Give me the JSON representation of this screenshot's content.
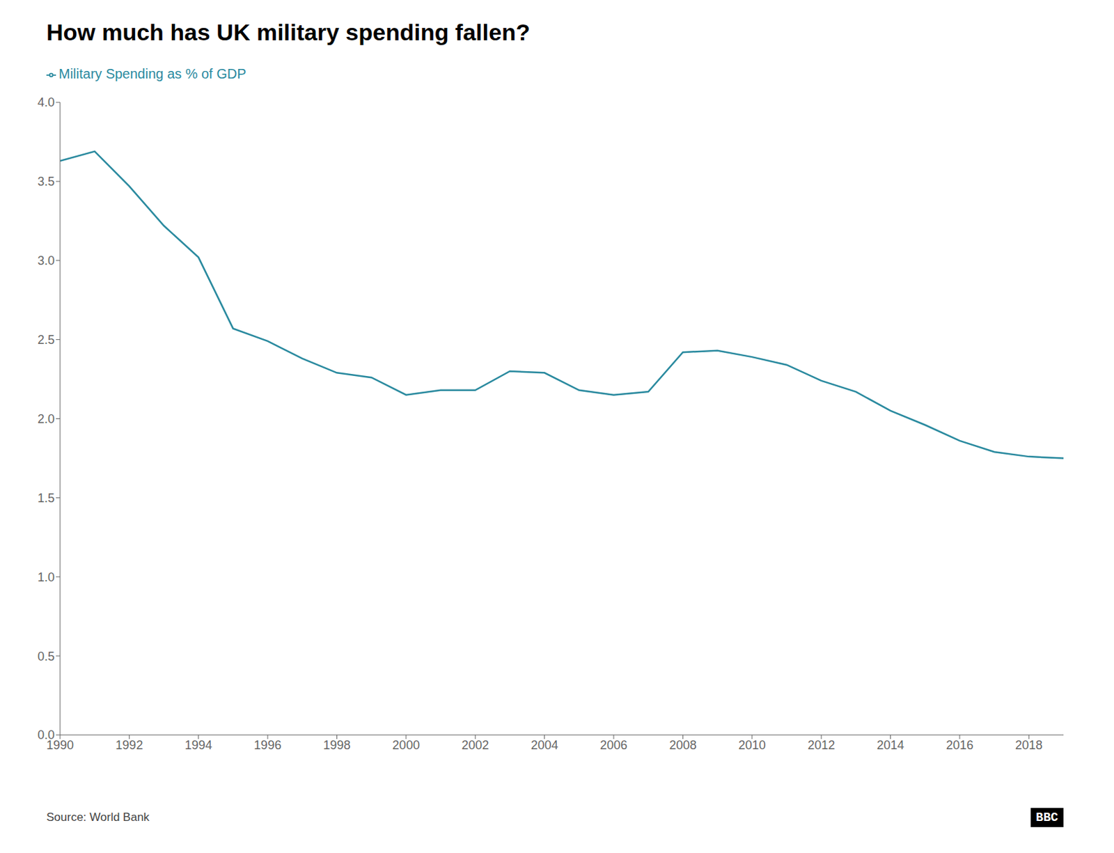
{
  "chart_data": {
    "type": "line",
    "title": "How much has UK military spending fallen?",
    "annotations": [
      "Source: World Bank",
      "BBC"
    ],
    "x": [
      1990,
      1991,
      1992,
      1993,
      1994,
      1995,
      1996,
      1997,
      1998,
      1999,
      2000,
      2001,
      2002,
      2003,
      2004,
      2005,
      2006,
      2007,
      2008,
      2009,
      2010,
      2011,
      2012,
      2013,
      2014,
      2015,
      2016,
      2017,
      2018,
      2019
    ],
    "series": [
      {
        "name": "Military Spending as % of GDP",
        "color": "#2a8a9f",
        "values": [
          3.63,
          3.69,
          3.47,
          3.22,
          3.02,
          2.57,
          2.49,
          2.38,
          2.29,
          2.26,
          2.15,
          2.18,
          2.18,
          2.3,
          2.29,
          2.18,
          2.15,
          2.17,
          2.42,
          2.43,
          2.39,
          2.34,
          2.24,
          2.17,
          2.05,
          1.96,
          1.86,
          1.79,
          1.76,
          1.75
        ]
      }
    ],
    "xlim": [
      1990,
      2019
    ],
    "xticks": [
      1990,
      1992,
      1994,
      1996,
      1998,
      2000,
      2002,
      2004,
      2006,
      2008,
      2010,
      2012,
      2014,
      2016,
      2018
    ],
    "ylim": [
      0.0,
      4.0
    ],
    "yticks": [
      {
        "value": 0.0,
        "label": "0.0"
      },
      0.5,
      {
        "value": 1.0,
        "label": "1.0"
      },
      1.5,
      {
        "value": 2.0,
        "label": "2.0"
      },
      2.5,
      {
        "value": 3.0,
        "label": "3.0"
      },
      3.5,
      {
        "value": 4.0,
        "label": "4.0"
      }
    ],
    "grid": false,
    "legend": "top"
  }
}
